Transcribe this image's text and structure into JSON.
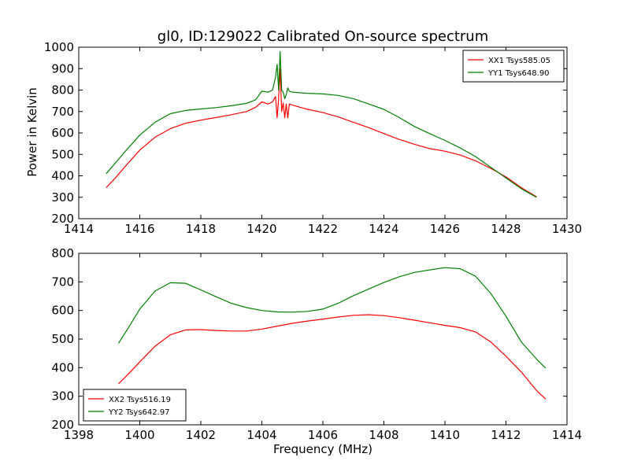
{
  "figure": {
    "title": "gl0, ID:129022 Calibrated On-source spectrum",
    "xlabel": "Frequency (MHz)",
    "ylabel": "Power in Kelvin"
  },
  "colors": {
    "red": "#ff0000",
    "green": "#008000"
  },
  "chart_data": [
    {
      "type": "line",
      "title": "gl0, ID:129022 Calibrated On-source spectrum",
      "xlabel": "",
      "ylabel": "Power in Kelvin",
      "xlim": [
        1414,
        1430
      ],
      "ylim": [
        200,
        1000
      ],
      "xticks": [
        1414,
        1416,
        1418,
        1420,
        1422,
        1424,
        1426,
        1428,
        1430
      ],
      "yticks": [
        200,
        300,
        400,
        500,
        600,
        700,
        800,
        900,
        1000
      ],
      "grid": false,
      "legend": "top-right",
      "series": [
        {
          "name": "XX1 Tsys585.05",
          "color": "#ff0000",
          "x": [
            1414.9,
            1415.2,
            1415.5,
            1416.0,
            1416.5,
            1417.0,
            1417.5,
            1418.0,
            1418.5,
            1419.0,
            1419.5,
            1419.8,
            1420.0,
            1420.2,
            1420.35,
            1420.45,
            1420.5,
            1420.55,
            1420.6,
            1420.65,
            1420.7,
            1420.75,
            1420.8,
            1420.85,
            1420.9,
            1421.0,
            1421.5,
            1422.0,
            1422.5,
            1423.0,
            1423.5,
            1424.0,
            1424.5,
            1425.0,
            1425.5,
            1426.0,
            1426.5,
            1427.0,
            1427.5,
            1428.0,
            1428.5,
            1429.0
          ],
          "y": [
            345,
            390,
            440,
            520,
            580,
            620,
            645,
            660,
            672,
            685,
            700,
            720,
            745,
            735,
            745,
            770,
            670,
            760,
            900,
            700,
            740,
            670,
            735,
            670,
            735,
            730,
            710,
            695,
            675,
            650,
            625,
            597,
            570,
            547,
            527,
            515,
            497,
            470,
            435,
            395,
            345,
            302
          ]
        },
        {
          "name": "YY1 Tsys648.90",
          "color": "#008000",
          "x": [
            1414.9,
            1415.2,
            1415.5,
            1416.0,
            1416.5,
            1417.0,
            1417.5,
            1418.0,
            1418.5,
            1419.0,
            1419.5,
            1419.8,
            1420.0,
            1420.2,
            1420.35,
            1420.45,
            1420.5,
            1420.55,
            1420.6,
            1420.65,
            1420.7,
            1420.75,
            1420.8,
            1420.85,
            1420.9,
            1421.0,
            1421.5,
            1422.0,
            1422.5,
            1423.0,
            1423.5,
            1424.0,
            1424.5,
            1425.0,
            1425.5,
            1426.0,
            1426.5,
            1427.0,
            1427.5,
            1428.0,
            1428.5,
            1429.0
          ],
          "y": [
            410,
            460,
            510,
            590,
            650,
            690,
            705,
            712,
            718,
            727,
            738,
            755,
            795,
            790,
            800,
            860,
            920,
            800,
            980,
            800,
            790,
            760,
            780,
            810,
            795,
            790,
            785,
            782,
            775,
            760,
            735,
            710,
            672,
            630,
            597,
            565,
            530,
            490,
            440,
            390,
            340,
            300
          ]
        }
      ]
    },
    {
      "type": "line",
      "title": "",
      "xlabel": "Frequency (MHz)",
      "ylabel": "",
      "xlim": [
        1398,
        1414
      ],
      "ylim": [
        200,
        800
      ],
      "xticks": [
        1398,
        1400,
        1402,
        1404,
        1406,
        1408,
        1410,
        1412,
        1414
      ],
      "yticks": [
        200,
        300,
        400,
        500,
        600,
        700,
        800
      ],
      "grid": false,
      "legend": "bottom-left",
      "series": [
        {
          "name": "XX2 Tsys516.19",
          "color": "#ff0000",
          "x": [
            1399.3,
            1399.6,
            1400.0,
            1400.5,
            1401.0,
            1401.5,
            1402.0,
            1402.5,
            1403.0,
            1403.5,
            1404.0,
            1404.5,
            1405.0,
            1405.5,
            1406.0,
            1406.5,
            1407.0,
            1407.5,
            1408.0,
            1408.5,
            1409.0,
            1409.5,
            1410.0,
            1410.5,
            1411.0,
            1411.5,
            1412.0,
            1412.5,
            1413.0,
            1413.3
          ],
          "y": [
            343,
            375,
            420,
            475,
            515,
            532,
            533,
            530,
            528,
            528,
            535,
            545,
            555,
            563,
            570,
            577,
            583,
            585,
            582,
            575,
            566,
            557,
            548,
            540,
            525,
            490,
            440,
            385,
            320,
            290
          ]
        },
        {
          "name": "YY2 Tsys642.97",
          "color": "#008000",
          "x": [
            1399.3,
            1399.6,
            1400.0,
            1400.5,
            1401.0,
            1401.5,
            1402.0,
            1402.5,
            1403.0,
            1403.5,
            1404.0,
            1404.5,
            1405.0,
            1405.5,
            1406.0,
            1406.5,
            1407.0,
            1407.5,
            1408.0,
            1408.5,
            1409.0,
            1409.5,
            1410.0,
            1410.5,
            1411.0,
            1411.5,
            1412.0,
            1412.5,
            1413.0,
            1413.3
          ],
          "y": [
            485,
            535,
            605,
            668,
            697,
            695,
            672,
            648,
            625,
            610,
            600,
            595,
            594,
            597,
            605,
            625,
            652,
            675,
            698,
            718,
            733,
            742,
            750,
            746,
            720,
            660,
            580,
            490,
            430,
            398
          ]
        }
      ]
    }
  ]
}
